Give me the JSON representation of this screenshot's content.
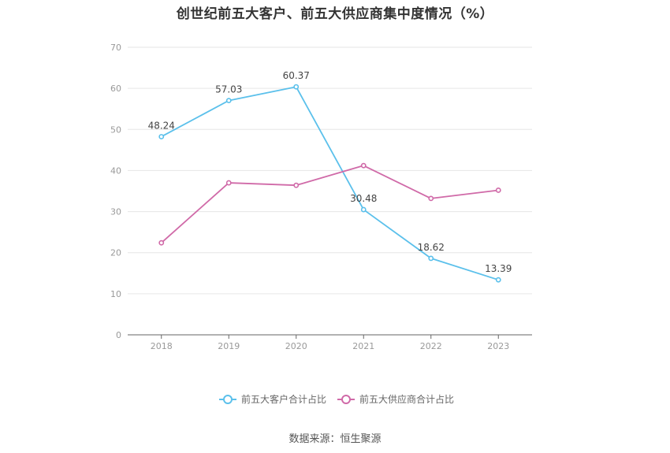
{
  "chart_data": {
    "type": "line",
    "title": "创世纪前五大客户、前五大供应商集中度情况（%）",
    "xlabel": "",
    "ylabel": "",
    "categories": [
      "2018",
      "2019",
      "2020",
      "2021",
      "2022",
      "2023"
    ],
    "ylim": [
      0,
      70
    ],
    "yticks": [
      0,
      10,
      20,
      30,
      40,
      50,
      60,
      70
    ],
    "grid": true,
    "legend_position": "bottom",
    "series": [
      {
        "name": "前五大客户合计占比",
        "color": "#5bc0eb",
        "values": [
          48.24,
          57.03,
          60.37,
          30.48,
          18.62,
          13.39
        ],
        "labels": [
          "48.24",
          "57.03",
          "60.37",
          "30.48",
          "18.62",
          "13.39"
        ]
      },
      {
        "name": "前五大供应商合计占比",
        "color": "#d06aa8",
        "values": [
          22.4,
          37.0,
          36.4,
          41.2,
          33.2,
          35.2
        ]
      }
    ],
    "source": "数据来源：恒生聚源"
  }
}
